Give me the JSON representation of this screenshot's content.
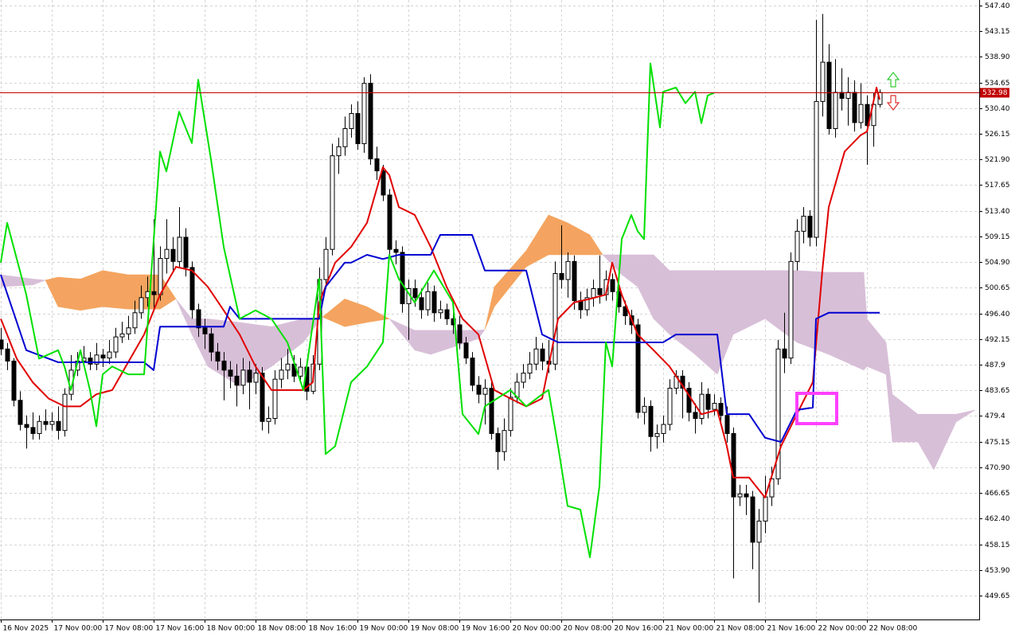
{
  "chart_data": {
    "type": "candlestick",
    "x": [
      0,
      1,
      2,
      3,
      4,
      5,
      6,
      7,
      8,
      9,
      10,
      11,
      12,
      13,
      14,
      15,
      16,
      17,
      18,
      19,
      20,
      21,
      22,
      23,
      24,
      25,
      26,
      27,
      28,
      29,
      30,
      31,
      32,
      33,
      34,
      35,
      36,
      37,
      38,
      39,
      40,
      41,
      42,
      43,
      44,
      45,
      46,
      47,
      48,
      49,
      50,
      51,
      52,
      53,
      54,
      55,
      56,
      57,
      58,
      59,
      60,
      61,
      62,
      63,
      64,
      65,
      66,
      67,
      68,
      69,
      70,
      71,
      72,
      73,
      74,
      75,
      76,
      77,
      78,
      79,
      80,
      81,
      82,
      83,
      84,
      85,
      86,
      87,
      88,
      89,
      90,
      91,
      92,
      93,
      94,
      95,
      96,
      97,
      98,
      99,
      100,
      101,
      102,
      103,
      104,
      105,
      106,
      107,
      108,
      109,
      110,
      111,
      112,
      113,
      114,
      115,
      116,
      117,
      118,
      119,
      120,
      121,
      122,
      123,
      124,
      125,
      126,
      127,
      128,
      129,
      130,
      131,
      132,
      133,
      134,
      135,
      136,
      137,
      138
    ],
    "open": [
      492.0,
      490.5,
      488.5,
      482.0,
      478.0,
      477.5,
      476.5,
      478.5,
      478.0,
      478.5,
      477.0,
      483.0,
      487.0,
      488.5,
      489.0,
      488.0,
      489.5,
      489.0,
      490.0,
      492.5,
      493.0,
      494.0,
      496.5,
      499.0,
      500.0,
      499.5,
      505.5,
      507.0,
      505.0,
      509.0,
      504.0,
      497.0,
      494.0,
      493.0,
      490.0,
      488.5,
      487.0,
      486.0,
      484.5,
      487.0,
      485.0,
      486.5,
      478.5,
      479.0,
      485.5,
      487.0,
      488.0,
      486.0,
      487.5,
      483.5,
      488.0,
      502.0,
      507.0,
      522.5,
      524.0,
      527.0,
      529.5,
      524.5,
      534.5,
      522.0,
      520.0,
      516.0,
      507.0,
      506.5,
      498.0,
      500.5,
      499.0,
      497.0,
      500.0,
      496.5,
      497.0,
      495.5,
      494.5,
      491.5,
      489.0,
      484.5,
      483.0,
      484.0,
      476.5,
      473.5,
      477.0,
      482.5,
      485.0,
      486.5,
      488.0,
      490.5,
      488.5,
      488.0,
      503.0,
      502.0,
      505.0,
      498.5,
      497.0,
      499.0,
      500.5,
      499.5,
      502.0,
      500.0,
      497.5,
      496.0,
      494.5,
      480.0,
      481.0,
      476.0,
      476.5,
      478.0,
      484.0,
      486.0,
      484.0,
      480.0,
      479.0,
      483.0,
      480.5,
      481.5,
      479.5,
      476.5,
      466.0,
      466.5,
      466.0,
      458.5,
      462.0,
      466.0,
      469.0,
      490.5,
      489.0,
      505.0,
      510.0,
      512.5,
      509.0,
      531.5,
      538.0,
      527.0,
      533.0,
      532.0,
      533.0,
      528.0,
      531.0,
      527.5,
      531.0
    ],
    "high": [
      494.0,
      491.5,
      489.0,
      483.5,
      479.5,
      480.0,
      479.5,
      480.5,
      480.0,
      481.0,
      484.0,
      489.5,
      490.0,
      491.0,
      490.0,
      491.5,
      490.5,
      492.0,
      494.0,
      495.0,
      496.0,
      498.5,
      501.0,
      502.5,
      512.0,
      507.5,
      512.0,
      509.0,
      514.0,
      510.5,
      505.0,
      498.0,
      495.5,
      494.0,
      491.5,
      490.0,
      488.5,
      488.0,
      489.0,
      488.5,
      488.0,
      487.5,
      481.0,
      487.0,
      489.0,
      490.5,
      489.5,
      489.0,
      488.5,
      489.5,
      504.0,
      509.0,
      524.5,
      525.5,
      529.0,
      531.0,
      531.5,
      535.5,
      536.0,
      524.0,
      521.0,
      517.0,
      508.5,
      507.5,
      502.0,
      502.0,
      500.5,
      501.5,
      501.0,
      498.5,
      498.0,
      497.0,
      496.0,
      492.5,
      490.0,
      486.0,
      485.5,
      485.0,
      477.5,
      479.0,
      484.0,
      486.5,
      488.0,
      490.0,
      492.5,
      491.5,
      492.0,
      505.0,
      511.0,
      506.5,
      506.0,
      500.0,
      500.5,
      502.0,
      506.0,
      503.5,
      503.0,
      501.0,
      498.5,
      497.0,
      495.5,
      482.5,
      482.0,
      478.0,
      479.5,
      485.5,
      487.0,
      487.0,
      485.0,
      481.5,
      485.0,
      484.0,
      483.0,
      482.5,
      481.0,
      477.5,
      468.0,
      468.0,
      467.0,
      464.0,
      469.5,
      471.0,
      492.0,
      496.5,
      506.5,
      512.0,
      514.0,
      513.5,
      545.0,
      546.0,
      541.0,
      538.5,
      537.0,
      535.5,
      535.0,
      534.5,
      532.5,
      533.0,
      533.5
    ],
    "low": [
      489.5,
      487.0,
      481.0,
      477.0,
      474.0,
      475.5,
      475.5,
      477.0,
      477.0,
      475.5,
      476.0,
      482.0,
      486.0,
      487.5,
      487.0,
      487.0,
      487.5,
      488.0,
      489.0,
      491.5,
      492.0,
      493.0,
      495.5,
      497.5,
      497.0,
      498.5,
      503.0,
      503.5,
      504.0,
      502.5,
      495.5,
      492.5,
      490.5,
      488.5,
      487.0,
      482.0,
      484.0,
      481.0,
      483.0,
      480.5,
      483.0,
      477.0,
      476.5,
      478.0,
      484.0,
      485.5,
      485.0,
      485.0,
      482.0,
      483.0,
      487.0,
      500.5,
      506.0,
      519.5,
      522.5,
      525.5,
      523.5,
      523.0,
      521.0,
      518.5,
      515.0,
      506.0,
      504.5,
      496.5,
      492.0,
      497.5,
      495.5,
      496.0,
      495.0,
      495.5,
      494.5,
      493.0,
      490.5,
      488.0,
      483.5,
      481.5,
      478.0,
      475.5,
      470.5,
      472.0,
      476.0,
      481.5,
      484.0,
      485.5,
      487.0,
      487.0,
      486.5,
      487.0,
      500.5,
      499.0,
      497.0,
      495.5,
      496.0,
      497.5,
      498.0,
      498.5,
      498.5,
      496.5,
      494.5,
      493.0,
      479.0,
      478.0,
      473.5,
      474.0,
      475.0,
      477.0,
      483.0,
      479.0,
      478.5,
      476.5,
      478.0,
      479.0,
      479.5,
      478.0,
      475.0,
      452.5,
      464.5,
      463.0,
      454.0,
      448.5,
      460.0,
      464.5,
      468.0,
      486.5,
      488.0,
      503.5,
      508.0,
      507.5,
      507.5,
      529.0,
      526.0,
      525.5,
      530.0,
      527.5,
      526.5,
      527.0,
      521.0,
      524.0,
      530.5
    ],
    "close": [
      490.5,
      488.5,
      482.0,
      478.0,
      477.5,
      476.5,
      478.5,
      478.0,
      478.5,
      477.0,
      483.0,
      487.0,
      488.5,
      489.0,
      488.0,
      489.5,
      489.0,
      490.0,
      492.5,
      493.0,
      494.0,
      496.5,
      499.0,
      500.0,
      499.5,
      505.5,
      507.0,
      505.0,
      509.0,
      504.0,
      497.0,
      494.0,
      493.0,
      490.0,
      488.5,
      487.0,
      486.0,
      484.5,
      487.0,
      485.0,
      486.5,
      478.5,
      479.0,
      485.5,
      487.0,
      488.0,
      486.0,
      487.5,
      483.5,
      488.0,
      502.0,
      507.0,
      522.5,
      524.0,
      527.0,
      529.5,
      524.5,
      534.5,
      522.0,
      520.0,
      516.0,
      507.0,
      506.5,
      498.0,
      500.5,
      499.0,
      497.0,
      500.0,
      496.5,
      497.0,
      495.5,
      494.5,
      491.5,
      489.0,
      484.5,
      483.0,
      484.0,
      476.5,
      473.5,
      477.0,
      482.5,
      485.0,
      486.5,
      488.0,
      490.5,
      488.5,
      488.0,
      503.0,
      502.0,
      505.0,
      498.5,
      497.0,
      499.0,
      500.5,
      499.5,
      502.0,
      500.0,
      497.5,
      496.0,
      494.5,
      480.0,
      481.0,
      476.0,
      476.5,
      478.0,
      484.0,
      486.0,
      484.0,
      480.0,
      479.0,
      483.0,
      480.5,
      481.5,
      479.5,
      476.5,
      466.0,
      466.5,
      466.0,
      458.5,
      462.0,
      466.0,
      469.0,
      490.5,
      489.0,
      505.0,
      510.0,
      512.5,
      509.0,
      531.5,
      538.0,
      527.0,
      533.0,
      532.0,
      533.0,
      528.0,
      531.0,
      527.5,
      531.0,
      532.98
    ],
    "up_color": "#ffffff",
    "down_color": "#000000",
    "xlim": [
      -0.125,
      153.625
    ],
    "xticks": [
      {
        "value": 0,
        "label": "16 Nov 2025"
      },
      {
        "value": 8,
        "label": "17 Nov 00:00"
      },
      {
        "value": 16,
        "label": "17 Nov 08:00"
      },
      {
        "value": 24,
        "label": "17 Nov 16:00"
      },
      {
        "value": 32,
        "label": "18 Nov 00:00"
      },
      {
        "value": 40,
        "label": "18 Nov 08:00"
      },
      {
        "value": 48,
        "label": "18 Nov 16:00"
      },
      {
        "value": 56,
        "label": "19 Nov 00:00"
      },
      {
        "value": 64,
        "label": "19 Nov 08:00"
      },
      {
        "value": 72,
        "label": "19 Nov 16:00"
      },
      {
        "value": 80,
        "label": "20 Nov 00:00"
      },
      {
        "value": 88,
        "label": "20 Nov 08:00"
      },
      {
        "value": 96,
        "label": "20 Nov 16:00"
      },
      {
        "value": 104,
        "label": "21 Nov 00:00"
      },
      {
        "value": 112,
        "label": "21 Nov 08:00"
      },
      {
        "value": 120,
        "label": "21 Nov 16:00"
      },
      {
        "value": 128,
        "label": "22 Nov 00:00"
      },
      {
        "value": 136,
        "label": "22 Nov 08:00"
      }
    ],
    "ylim": [
      445.7,
      548.3
    ],
    "yticks": [
      {
        "value": 547.4,
        "label": "547.40"
      },
      543.15,
      {
        "value": 538.9,
        "label": "538.90"
      },
      534.65,
      {
        "value": 530.4,
        "label": "530.40"
      },
      526.15,
      {
        "value": 521.9,
        "label": "521.90"
      },
      517.65,
      {
        "value": 513.4,
        "label": "513.40"
      },
      509.15,
      {
        "value": 504.9,
        "label": "504.90"
      },
      500.65,
      {
        "value": 496.4,
        "label": "496.40"
      },
      492.15,
      487.9,
      483.65,
      479.4,
      475.15,
      {
        "value": 470.9,
        "label": "470.90"
      },
      466.65,
      {
        "value": 462.4,
        "label": "462.40"
      },
      458.15,
      {
        "value": 453.9,
        "label": "453.90"
      },
      449.65
    ],
    "grid": true,
    "current_price": 532.98,
    "current_price_color": "#c00000",
    "lines": [
      {
        "color": "#e00000",
        "x": [
          0,
          2.5,
          5,
          7.5,
          10,
          12.5,
          15,
          17.5,
          20,
          22.5,
          25,
          27.5,
          30,
          32.5,
          35,
          37.5,
          40,
          42.5,
          47.5,
          49,
          50,
          52.5,
          55,
          57.5,
          60,
          61,
          62.5,
          65,
          67.5,
          70,
          72.5,
          75,
          77.5,
          80,
          82.5,
          85,
          87.5,
          90,
          92.5,
          95,
          96,
          97.5,
          100,
          102.5,
          105,
          107.5,
          110,
          112.5,
          114,
          115,
          117.5,
          120,
          122.5,
          125,
          127.5,
          129,
          130,
          132.5,
          135,
          136,
          137.5,
          138
        ],
        "values": [
          495.5,
          488.9,
          485.0,
          482.3,
          481.0,
          481.0,
          483.0,
          483.7,
          488.3,
          492.9,
          499.5,
          504.1,
          503.5,
          500.8,
          496.9,
          492.9,
          487.6,
          483.7,
          483.7,
          485.0,
          498.2,
          504.8,
          507.4,
          511.4,
          520.6,
          519.3,
          514.0,
          512.7,
          507.4,
          500.8,
          495.5,
          492.9,
          483.7,
          482.3,
          481.0,
          482.3,
          495.5,
          498.2,
          498.8,
          499.5,
          504.8,
          499.5,
          492.9,
          490.3,
          487.6,
          483.7,
          479.7,
          480.4,
          474.4,
          469.2,
          469.2,
          465.9,
          474.4,
          479.7,
          485.0,
          503.5,
          514.0,
          523.2,
          525.9,
          526.5,
          533.8,
          531.8
        ]
      },
      {
        "color": "#0000d0",
        "x": [
          0,
          4,
          9,
          22.5,
          24,
          25,
          35,
          36,
          37.5,
          50,
          51,
          54,
          55,
          57.5,
          60,
          62.5,
          67.5,
          69,
          74,
          76,
          82.5,
          85,
          87.5,
          104,
          106,
          112.5,
          114,
          117.5,
          120,
          122.5,
          125,
          127.5,
          128,
          130,
          138
        ],
        "values": [
          502.8,
          490.3,
          488.3,
          488.3,
          487.0,
          494.2,
          494.2,
          497.5,
          495.5,
          495.5,
          500.8,
          504.8,
          504.8,
          506.1,
          505.4,
          506.1,
          506.1,
          509.4,
          509.4,
          503.5,
          503.5,
          492.9,
          491.6,
          491.6,
          492.9,
          492.9,
          479.7,
          479.7,
          475.8,
          475.1,
          480.4,
          480.8,
          495.5,
          496.5,
          496.5
        ]
      },
      {
        "color": "#00e000",
        "x": [
          0,
          1,
          4,
          6,
          9,
          10,
          11,
          12.5,
          14,
          15,
          16,
          17.5,
          20,
          22.5,
          25,
          26,
          28,
          30,
          31,
          33,
          35,
          37.5,
          40,
          42.5,
          45,
          47.5,
          50,
          51,
          52.5,
          55,
          57.5,
          60,
          61,
          62.5,
          65,
          68,
          71,
          72.5,
          75,
          76,
          80,
          82.5,
          85,
          86,
          87.5,
          89,
          91,
          92.5,
          94,
          95,
          96,
          97.5,
          99,
          100,
          101,
          102,
          103.5,
          104,
          106,
          107.5,
          109,
          110,
          111,
          112
        ],
        "values": [
          504.8,
          511.4,
          499.5,
          488.9,
          490.3,
          487.6,
          483.7,
          490.3,
          483.7,
          477.7,
          486.3,
          487.6,
          486.3,
          486.3,
          523.2,
          519.9,
          529.8,
          524.6,
          535.1,
          521.9,
          507.4,
          495.5,
          496.9,
          495.5,
          491.6,
          483.7,
          502.1,
          473.1,
          474.4,
          485.0,
          487.6,
          491.6,
          506.1,
          502.1,
          498.2,
          503.5,
          498.2,
          479.7,
          476.4,
          481.0,
          483.7,
          481.0,
          483.0,
          483.7,
          474.4,
          464.5,
          463.9,
          456.0,
          467.8,
          491.6,
          487.6,
          508.7,
          512.7,
          510.0,
          508.7,
          537.8,
          527.2,
          533.1,
          533.8,
          531.2,
          533.1,
          527.9,
          532.5,
          532.9
        ]
      }
    ],
    "cloud": {
      "x": [
        0,
        5,
        7,
        9,
        12.5,
        16,
        20,
        25,
        27.5,
        30,
        32.5,
        37.5,
        42.5,
        47.5,
        50.5,
        54,
        57.5,
        61,
        65,
        67.5,
        75,
        76,
        77.5,
        82.5,
        86,
        89,
        92.5,
        94.5,
        97.5,
        100,
        102.5,
        105,
        109,
        112.5,
        115,
        120,
        125,
        130,
        135.5,
        136,
        139,
        140,
        144,
        146.5,
        150,
        153
      ],
      "span_a": [
        502.8,
        502.1,
        501.9,
        497.5,
        496.9,
        497.5,
        497.1,
        497.1,
        498.8,
        495.5,
        495.5,
        494.9,
        494.2,
        495.5,
        495.8,
        494.2,
        494.9,
        495.5,
        493.6,
        493.6,
        493.6,
        493.7,
        497.5,
        504.1,
        506.1,
        506.1,
        506.1,
        506.1,
        506.1,
        506.1,
        506.1,
        503.5,
        503.5,
        503.5,
        503.5,
        503.5,
        503.5,
        503.2,
        503.2,
        495.5,
        491.6,
        483.0,
        479.7,
        479.7,
        479.7,
        480.4
      ],
      "span_b": [
        500.8,
        501.1,
        501.9,
        502.4,
        502.1,
        503.5,
        502.8,
        502.8,
        498.8,
        492.9,
        487.6,
        484.3,
        487.6,
        491.6,
        495.8,
        498.8,
        497.5,
        495.5,
        490.3,
        489.6,
        492.2,
        493.7,
        500.8,
        506.8,
        512.7,
        511.4,
        509.4,
        506.1,
        502.8,
        500.8,
        495.5,
        492.9,
        489.6,
        486.3,
        492.9,
        495.5,
        491.6,
        489.6,
        487.0,
        487.6,
        486.3,
        475.1,
        475.1,
        470.5,
        478.4,
        480.4
      ],
      "up_color": "#d8bfd8",
      "down_color": "#f4a460"
    }
  }
}
